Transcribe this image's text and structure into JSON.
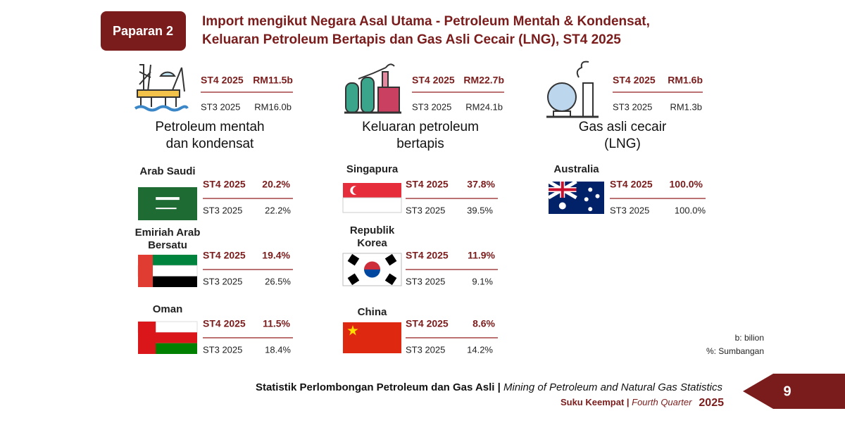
{
  "badge": "Paparan 2",
  "title": [
    "Import mengikut Negara Asal Utama - Petroleum Mentah & Kondensat,",
    "Keluaran Petroleum Bertapis dan Gas Asli Cecair (LNG), ST4 2025"
  ],
  "sections": [
    {
      "summary": {
        "current_label": "ST4 2025",
        "current_value": "RM11.5b",
        "previous_label": "ST3 2025",
        "previous_value": "RM16.0b"
      },
      "name": [
        "Petroleum mentah",
        "dan kondensat"
      ],
      "countries": [
        {
          "name": [
            "Arab Saudi"
          ],
          "current_label": "ST4 2025",
          "current_value": "20.2%",
          "previous_label": "ST3 2025",
          "previous_value": "22.2%"
        },
        {
          "name": [
            "Emiriah Arab",
            "Bersatu"
          ],
          "current_label": "ST4 2025",
          "current_value": "19.4%",
          "previous_label": "ST3 2025",
          "previous_value": "26.5%"
        },
        {
          "name": [
            "Oman"
          ],
          "current_label": "ST4 2025",
          "current_value": "11.5%",
          "previous_label": "ST3 2025",
          "previous_value": "18.4%"
        }
      ]
    },
    {
      "summary": {
        "current_label": "ST4 2025",
        "current_value": "RM22.7b",
        "previous_label": "ST3 2025",
        "previous_value": "RM24.1b"
      },
      "name": [
        "Keluaran petroleum",
        "bertapis"
      ],
      "countries": [
        {
          "name": [
            "Singapura"
          ],
          "current_label": "ST4 2025",
          "current_value": "37.8%",
          "previous_label": "ST3 2025",
          "previous_value": "39.5%"
        },
        {
          "name": [
            "Republik",
            "Korea"
          ],
          "current_label": "ST4 2025",
          "current_value": "11.9%",
          "previous_label": "ST3 2025",
          "previous_value": "9.1%"
        },
        {
          "name": [
            "China"
          ],
          "current_label": "ST4 2025",
          "current_value": "8.6%",
          "previous_label": "ST3 2025",
          "previous_value": "14.2%"
        }
      ]
    },
    {
      "summary": {
        "current_label": "ST4 2025",
        "current_value": "RM1.6b",
        "previous_label": "ST3 2025",
        "previous_value": "RM1.3b"
      },
      "name": [
        "Gas asli cecair",
        "(LNG)"
      ],
      "countries": [
        {
          "name": [
            "Australia"
          ],
          "current_label": "ST4 2025",
          "current_value": "100.0%",
          "previous_label": "ST3 2025",
          "previous_value": "100.0%"
        }
      ]
    }
  ],
  "notes": [
    "b: bilion",
    "%: Sumbangan"
  ],
  "footer": {
    "title": "Statistik Perlombongan Petroleum dan Gas Asli | ",
    "title_en": "Mining of Petroleum and Natural Gas Statistics",
    "period": "Suku Keempat | ",
    "period_en": "Fourth Quarter",
    "year": "2025",
    "page": "9"
  }
}
